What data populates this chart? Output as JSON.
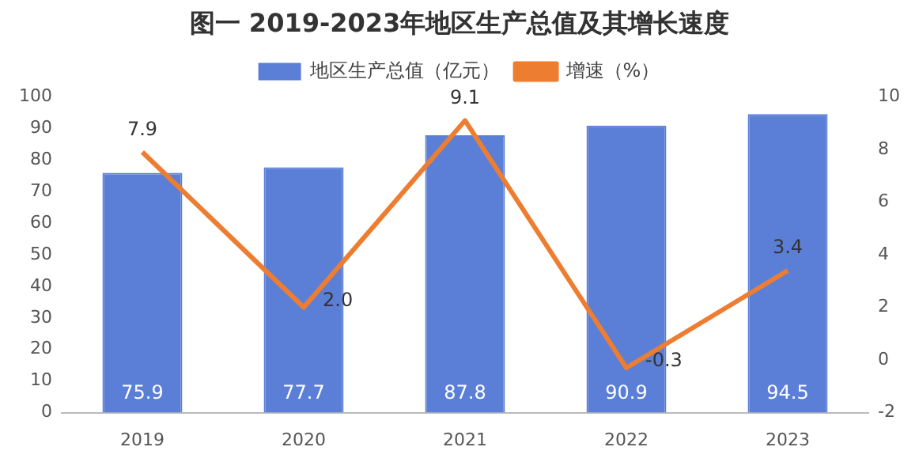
{
  "chart_data": {
    "type": "bar",
    "title": "图一 2019-2023年地区生产总值及其增长速度",
    "categories": [
      "2019",
      "2020",
      "2021",
      "2022",
      "2023"
    ],
    "series": [
      {
        "name": "地区生产总值（亿元）",
        "color": "#5b7fd6",
        "values": [
          75.9,
          77.7,
          87.8,
          90.9,
          94.5
        ]
      },
      {
        "name": "增速（%）",
        "type": "line",
        "axis": "y2",
        "color": "#ed7d31",
        "values": [
          7.9,
          2.0,
          9.1,
          -0.3,
          3.4
        ],
        "value_labels": [
          "7.9",
          "2.0",
          "9.1",
          "-0.3",
          "3.4"
        ]
      }
    ],
    "ylim": [
      0,
      100
    ],
    "yticks": [
      0,
      10,
      20,
      30,
      40,
      50,
      60,
      70,
      80,
      90,
      100
    ],
    "y2lim": [
      -2,
      10
    ],
    "y2ticks": [
      -2,
      0,
      2,
      4,
      6,
      8,
      10
    ],
    "data_labels": true,
    "legend": "top",
    "grid": false,
    "marker": "none",
    "line_style": "solid"
  }
}
